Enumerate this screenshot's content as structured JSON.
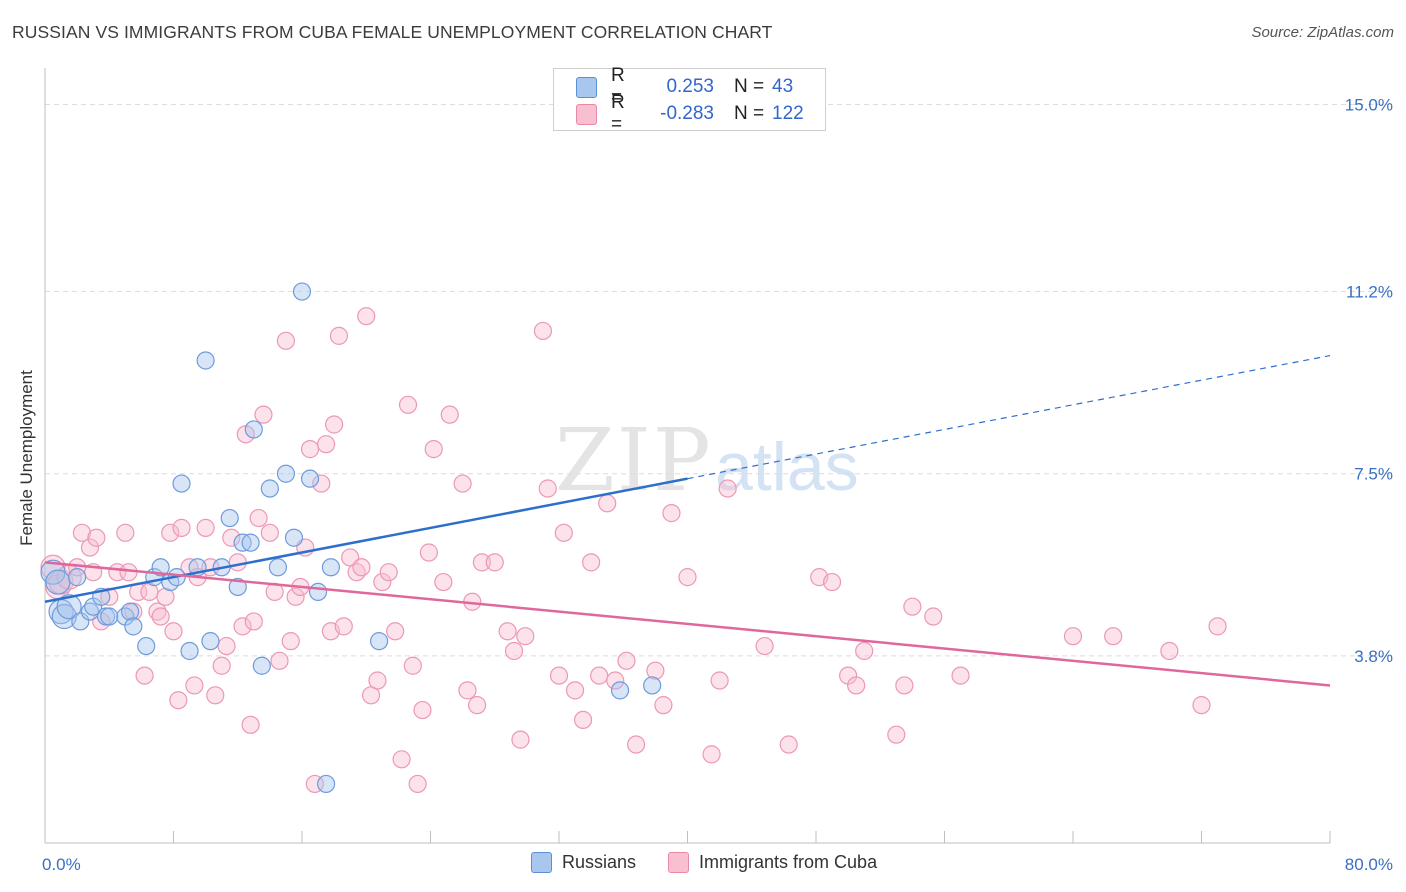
{
  "title": "RUSSIAN VS IMMIGRANTS FROM CUBA FEMALE UNEMPLOYMENT CORRELATION CHART",
  "source": "Source: ZipAtlas.com",
  "watermark": {
    "zip": "ZIP",
    "atlas": "atlas"
  },
  "legend": {
    "rows": [
      {
        "r_label": "R =",
        "r_value": "0.253",
        "n_label": "N =",
        "n_value": "43",
        "color": "#a9c6ee",
        "border": "#5b8fd6"
      },
      {
        "r_label": "R =",
        "r_value": "-0.283",
        "n_label": "N =",
        "n_value": "122",
        "color": "#f8bfd0",
        "border": "#e889a8"
      }
    ]
  },
  "bottom_legend": [
    {
      "label": "Russians",
      "color": "#a9c6ee",
      "border": "#5b8fd6"
    },
    {
      "label": "Immigrants from Cuba",
      "color": "#f8bfd0",
      "border": "#e889a8"
    }
  ],
  "chart_data": {
    "type": "scatter",
    "xlabel": "",
    "ylabel": "Female Unemployment",
    "xlim": [
      0,
      80
    ],
    "ylim": [
      0,
      15.7
    ],
    "x_tick_labels": [
      "0.0%",
      "80.0%"
    ],
    "y_ticks": [
      3.8,
      7.5,
      11.2,
      15.0
    ],
    "y_tick_labels": [
      "3.8%",
      "7.5%",
      "11.2%",
      "15.0%"
    ],
    "grid": "horizontal-dashed",
    "series": [
      {
        "name": "Russians",
        "color": "#7aa8e6",
        "line_color": "#2f6fcc",
        "trend": {
          "x0": 0,
          "y0": 4.9,
          "x1": 40,
          "y1": 7.4,
          "x_end": 80,
          "y_end": 9.9
        },
        "points": [
          [
            0.5,
            5.5
          ],
          [
            0.8,
            5.3
          ],
          [
            1.0,
            4.7
          ],
          [
            1.2,
            4.6
          ],
          [
            1.5,
            4.8
          ],
          [
            2.0,
            5.4
          ],
          [
            2.2,
            4.5
          ],
          [
            2.8,
            4.7
          ],
          [
            3.0,
            4.8
          ],
          [
            3.5,
            5.0
          ],
          [
            3.8,
            4.6
          ],
          [
            4.0,
            4.6
          ],
          [
            5.0,
            4.6
          ],
          [
            5.3,
            4.7
          ],
          [
            5.5,
            4.4
          ],
          [
            6.3,
            4.0
          ],
          [
            6.8,
            5.4
          ],
          [
            7.2,
            5.6
          ],
          [
            7.8,
            5.3
          ],
          [
            8.2,
            5.4
          ],
          [
            8.5,
            7.3
          ],
          [
            9.0,
            3.9
          ],
          [
            9.5,
            5.6
          ],
          [
            10.0,
            9.8
          ],
          [
            10.3,
            4.1
          ],
          [
            11.0,
            5.6
          ],
          [
            11.5,
            6.6
          ],
          [
            12.0,
            5.2
          ],
          [
            12.3,
            6.1
          ],
          [
            12.8,
            6.1
          ],
          [
            13.0,
            8.4
          ],
          [
            13.5,
            3.6
          ],
          [
            14.0,
            7.2
          ],
          [
            14.5,
            5.6
          ],
          [
            15.0,
            7.5
          ],
          [
            15.5,
            6.2
          ],
          [
            16.0,
            11.2
          ],
          [
            16.5,
            7.4
          ],
          [
            17.0,
            5.1
          ],
          [
            17.5,
            1.2
          ],
          [
            17.8,
            5.6
          ],
          [
            20.8,
            4.1
          ],
          [
            35.8,
            3.1
          ],
          [
            37.8,
            3.2
          ]
        ]
      },
      {
        "name": "Immigrants from Cuba",
        "color": "#f4a2bd",
        "line_color": "#e0679a",
        "trend": {
          "x0": 0,
          "y0": 5.7,
          "x1": 80,
          "y1": 3.2
        },
        "points": [
          [
            0.5,
            5.6
          ],
          [
            0.8,
            5.2
          ],
          [
            1.0,
            5.3
          ],
          [
            1.5,
            5.4
          ],
          [
            2.0,
            5.6
          ],
          [
            2.3,
            6.3
          ],
          [
            2.8,
            6.0
          ],
          [
            3.0,
            5.5
          ],
          [
            3.2,
            6.2
          ],
          [
            3.5,
            4.5
          ],
          [
            4.0,
            5.0
          ],
          [
            4.5,
            5.5
          ],
          [
            5.0,
            6.3
          ],
          [
            5.2,
            5.5
          ],
          [
            5.5,
            4.7
          ],
          [
            5.8,
            5.1
          ],
          [
            6.2,
            3.4
          ],
          [
            6.5,
            5.1
          ],
          [
            7.0,
            4.7
          ],
          [
            7.2,
            4.6
          ],
          [
            7.5,
            5.0
          ],
          [
            7.8,
            6.3
          ],
          [
            8.0,
            4.3
          ],
          [
            8.3,
            2.9
          ],
          [
            8.5,
            6.4
          ],
          [
            9.0,
            5.6
          ],
          [
            9.3,
            3.2
          ],
          [
            9.5,
            5.4
          ],
          [
            10.0,
            6.4
          ],
          [
            10.3,
            5.6
          ],
          [
            10.6,
            3.0
          ],
          [
            11.0,
            3.6
          ],
          [
            11.3,
            4.0
          ],
          [
            11.6,
            6.2
          ],
          [
            12.0,
            5.7
          ],
          [
            12.3,
            4.4
          ],
          [
            12.5,
            8.3
          ],
          [
            12.8,
            2.4
          ],
          [
            13.0,
            4.5
          ],
          [
            13.3,
            6.6
          ],
          [
            13.6,
            8.7
          ],
          [
            14.0,
            6.3
          ],
          [
            14.3,
            5.1
          ],
          [
            14.6,
            3.7
          ],
          [
            15.0,
            10.2
          ],
          [
            15.3,
            4.1
          ],
          [
            15.6,
            5.0
          ],
          [
            15.9,
            5.2
          ],
          [
            16.2,
            6.0
          ],
          [
            16.5,
            8.0
          ],
          [
            16.8,
            1.2
          ],
          [
            17.2,
            7.3
          ],
          [
            17.5,
            8.1
          ],
          [
            17.8,
            4.3
          ],
          [
            18.0,
            8.5
          ],
          [
            18.3,
            10.3
          ],
          [
            18.6,
            4.4
          ],
          [
            19.0,
            5.8
          ],
          [
            19.4,
            5.5
          ],
          [
            19.7,
            5.6
          ],
          [
            20.0,
            10.7
          ],
          [
            20.3,
            3.0
          ],
          [
            20.7,
            3.3
          ],
          [
            21.0,
            5.3
          ],
          [
            21.4,
            5.5
          ],
          [
            21.8,
            4.3
          ],
          [
            22.2,
            1.7
          ],
          [
            22.6,
            8.9
          ],
          [
            22.9,
            3.6
          ],
          [
            23.2,
            1.2
          ],
          [
            23.5,
            2.7
          ],
          [
            23.9,
            5.9
          ],
          [
            24.2,
            8.0
          ],
          [
            24.8,
            5.3
          ],
          [
            25.2,
            8.7
          ],
          [
            26.0,
            7.3
          ],
          [
            26.3,
            3.1
          ],
          [
            26.6,
            4.9
          ],
          [
            26.9,
            2.8
          ],
          [
            27.2,
            5.7
          ],
          [
            28.0,
            5.7
          ],
          [
            28.8,
            4.3
          ],
          [
            29.2,
            3.9
          ],
          [
            29.6,
            2.1
          ],
          [
            29.9,
            4.2
          ],
          [
            31.0,
            10.4
          ],
          [
            31.3,
            7.2
          ],
          [
            32.0,
            3.4
          ],
          [
            32.3,
            6.3
          ],
          [
            33.0,
            3.1
          ],
          [
            33.5,
            2.5
          ],
          [
            34.0,
            5.7
          ],
          [
            34.5,
            3.4
          ],
          [
            35.0,
            6.9
          ],
          [
            35.5,
            3.3
          ],
          [
            36.2,
            3.7
          ],
          [
            36.8,
            2.0
          ],
          [
            38.0,
            3.5
          ],
          [
            38.5,
            2.8
          ],
          [
            39.0,
            6.7
          ],
          [
            40.0,
            5.4
          ],
          [
            41.5,
            1.8
          ],
          [
            42.0,
            3.3
          ],
          [
            42.5,
            7.2
          ],
          [
            44.8,
            4.0
          ],
          [
            46.3,
            2.0
          ],
          [
            48.2,
            5.4
          ],
          [
            49.0,
            5.3
          ],
          [
            50.0,
            3.4
          ],
          [
            50.5,
            3.2
          ],
          [
            51.0,
            3.9
          ],
          [
            53.0,
            2.2
          ],
          [
            53.5,
            3.2
          ],
          [
            54.0,
            4.8
          ],
          [
            55.3,
            4.6
          ],
          [
            57.0,
            3.4
          ],
          [
            64.0,
            4.2
          ],
          [
            66.5,
            4.2
          ],
          [
            70.0,
            3.9
          ],
          [
            72.0,
            2.8
          ],
          [
            73.0,
            4.4
          ]
        ]
      }
    ]
  }
}
